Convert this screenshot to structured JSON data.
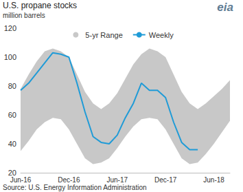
{
  "chart_data": {
    "type": "line",
    "title": "U.S. propane stocks",
    "subtitle": "million barrels",
    "source": "Source: U.S. Energy Information Administration",
    "logo": "eia",
    "categories": [
      "Jun-16",
      null,
      null,
      null,
      null,
      null,
      "Dec-16",
      null,
      null,
      null,
      null,
      null,
      "Jun-17",
      null,
      null,
      null,
      null,
      null,
      "Dec-17",
      null,
      null,
      null,
      null,
      null,
      "Jun-18",
      null,
      null
    ],
    "series": [
      {
        "name": "5-yr Range",
        "type": "area_range",
        "color": "#c8c8c8",
        "low": [
          35,
          42,
          50,
          55,
          58,
          57,
          50,
          40,
          30,
          26,
          27,
          30,
          37,
          45,
          52,
          57,
          58,
          57,
          50,
          40,
          30,
          26,
          27,
          33,
          40,
          48,
          56
        ],
        "high": [
          78,
          88,
          97,
          104,
          106,
          104,
          100,
          88,
          76,
          68,
          64,
          68,
          75,
          85,
          95,
          102,
          106,
          104,
          100,
          88,
          76,
          68,
          64,
          68,
          73,
          78,
          84
        ]
      },
      {
        "name": "Weekly",
        "type": "line",
        "color": "#1f9bd7",
        "values": [
          77,
          82,
          89,
          96,
          103,
          102,
          100,
          82,
          62,
          45,
          41,
          40,
          46,
          58,
          68,
          82,
          77,
          77,
          72,
          55,
          41,
          36,
          36,
          null,
          null,
          null,
          null
        ]
      }
    ],
    "ylim": [
      20,
      120
    ],
    "yticks": [
      20,
      40,
      60,
      80,
      100,
      120
    ],
    "grid": false,
    "legend": "top"
  }
}
